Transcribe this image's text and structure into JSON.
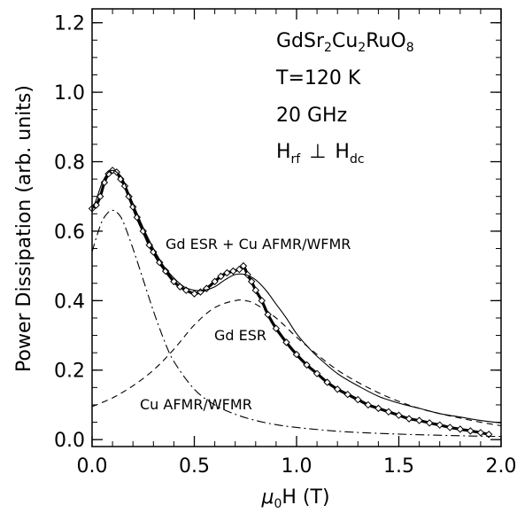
{
  "chart_data": {
    "type": "line",
    "xlabel": "μ0H (T)",
    "xlabel_parts": {
      "mu": "μ",
      "sub": "0",
      "rest": "H (T)"
    },
    "ylabel": "Power Dissipation (arb. units)",
    "xlim": [
      0.0,
      2.0
    ],
    "ylim": [
      -0.02,
      1.24
    ],
    "x_ticks": [
      0.0,
      0.5,
      1.0,
      1.5,
      2.0
    ],
    "x_tick_labels": [
      "0.0",
      "0.5",
      "1.0",
      "1.5",
      "2.0"
    ],
    "y_ticks": [
      0.0,
      0.2,
      0.4,
      0.6,
      0.8,
      1.0,
      1.2
    ],
    "y_tick_labels": [
      "0.0",
      "0.2",
      "0.4",
      "0.6",
      "0.8",
      "1.0",
      "1.2"
    ],
    "info": {
      "compound": {
        "p1": "GdSr",
        "s1": "2",
        "p2": "Cu",
        "s2": "2",
        "p3": "RuO",
        "s3": "8"
      },
      "temperature": "T=120 K",
      "frequency": "20 GHz",
      "geometry": {
        "h1": "H",
        "s1": "rf",
        "perp": "⊥",
        "h2": "H",
        "s2": "dc"
      }
    },
    "annotations": {
      "fit_total": "Gd ESR + Cu AFMR/WFMR",
      "gd_esr": "Gd ESR",
      "cu": "Cu AFMR/WFMR"
    },
    "series": [
      {
        "style": "markers-diamond",
        "x": [
          0.0,
          0.02,
          0.04,
          0.06,
          0.08,
          0.1,
          0.12,
          0.14,
          0.16,
          0.18,
          0.2,
          0.22,
          0.25,
          0.28,
          0.3,
          0.33,
          0.36,
          0.4,
          0.43,
          0.46,
          0.5,
          0.53,
          0.56,
          0.6,
          0.63,
          0.66,
          0.69,
          0.72,
          0.74,
          0.76,
          0.78,
          0.8,
          0.83,
          0.86,
          0.9,
          0.95,
          1.0,
          1.05,
          1.1,
          1.15,
          1.2,
          1.25,
          1.3,
          1.35,
          1.4,
          1.45,
          1.5,
          1.55,
          1.6,
          1.65,
          1.7,
          1.75,
          1.8,
          1.85,
          1.9,
          1.94
        ],
        "y": [
          0.665,
          0.675,
          0.7,
          0.74,
          0.765,
          0.775,
          0.77,
          0.75,
          0.73,
          0.7,
          0.67,
          0.64,
          0.6,
          0.56,
          0.54,
          0.51,
          0.485,
          0.455,
          0.44,
          0.43,
          0.42,
          0.425,
          0.435,
          0.455,
          0.47,
          0.48,
          0.485,
          0.49,
          0.5,
          0.475,
          0.455,
          0.43,
          0.4,
          0.36,
          0.32,
          0.28,
          0.245,
          0.215,
          0.19,
          0.165,
          0.145,
          0.13,
          0.115,
          0.1,
          0.09,
          0.08,
          0.07,
          0.06,
          0.055,
          0.048,
          0.042,
          0.035,
          0.03,
          0.025,
          0.02,
          0.015
        ]
      },
      {
        "style": "solid",
        "x": [
          0.0,
          0.02,
          0.05,
          0.08,
          0.1,
          0.12,
          0.15,
          0.2,
          0.25,
          0.3,
          0.35,
          0.4,
          0.45,
          0.5,
          0.55,
          0.6,
          0.65,
          0.7,
          0.75,
          0.8,
          0.85,
          0.9,
          0.95,
          1.0,
          1.05,
          1.1,
          1.2,
          1.3,
          1.4,
          1.5,
          1.6,
          1.7,
          1.8,
          1.9,
          2.0
        ],
        "y": [
          0.66,
          0.69,
          0.74,
          0.77,
          0.775,
          0.77,
          0.75,
          0.68,
          0.61,
          0.55,
          0.5,
          0.465,
          0.44,
          0.43,
          0.43,
          0.44,
          0.46,
          0.475,
          0.475,
          0.46,
          0.43,
          0.39,
          0.35,
          0.305,
          0.27,
          0.24,
          0.19,
          0.155,
          0.125,
          0.105,
          0.09,
          0.075,
          0.065,
          0.055,
          0.048
        ]
      },
      {
        "style": "dashed",
        "x": [
          0.0,
          0.1,
          0.2,
          0.3,
          0.4,
          0.5,
          0.6,
          0.7,
          0.75,
          0.8,
          0.9,
          1.0,
          1.1,
          1.2,
          1.3,
          1.4,
          1.5,
          1.6,
          1.7,
          1.8,
          1.9,
          2.0
        ],
        "y": [
          0.095,
          0.12,
          0.155,
          0.2,
          0.26,
          0.33,
          0.38,
          0.4,
          0.4,
          0.39,
          0.35,
          0.295,
          0.245,
          0.2,
          0.165,
          0.135,
          0.11,
          0.09,
          0.075,
          0.062,
          0.05,
          0.04
        ]
      },
      {
        "style": "dashdot",
        "x": [
          0.0,
          0.02,
          0.05,
          0.08,
          0.1,
          0.12,
          0.15,
          0.2,
          0.25,
          0.3,
          0.35,
          0.4,
          0.5,
          0.6,
          0.7,
          0.8,
          0.9,
          1.0,
          1.2,
          1.4,
          1.6,
          1.8,
          2.0
        ],
        "y": [
          0.54,
          0.58,
          0.63,
          0.655,
          0.66,
          0.655,
          0.63,
          0.55,
          0.46,
          0.37,
          0.29,
          0.225,
          0.145,
          0.1,
          0.073,
          0.055,
          0.043,
          0.035,
          0.024,
          0.018,
          0.014,
          0.011,
          0.009
        ]
      }
    ]
  }
}
